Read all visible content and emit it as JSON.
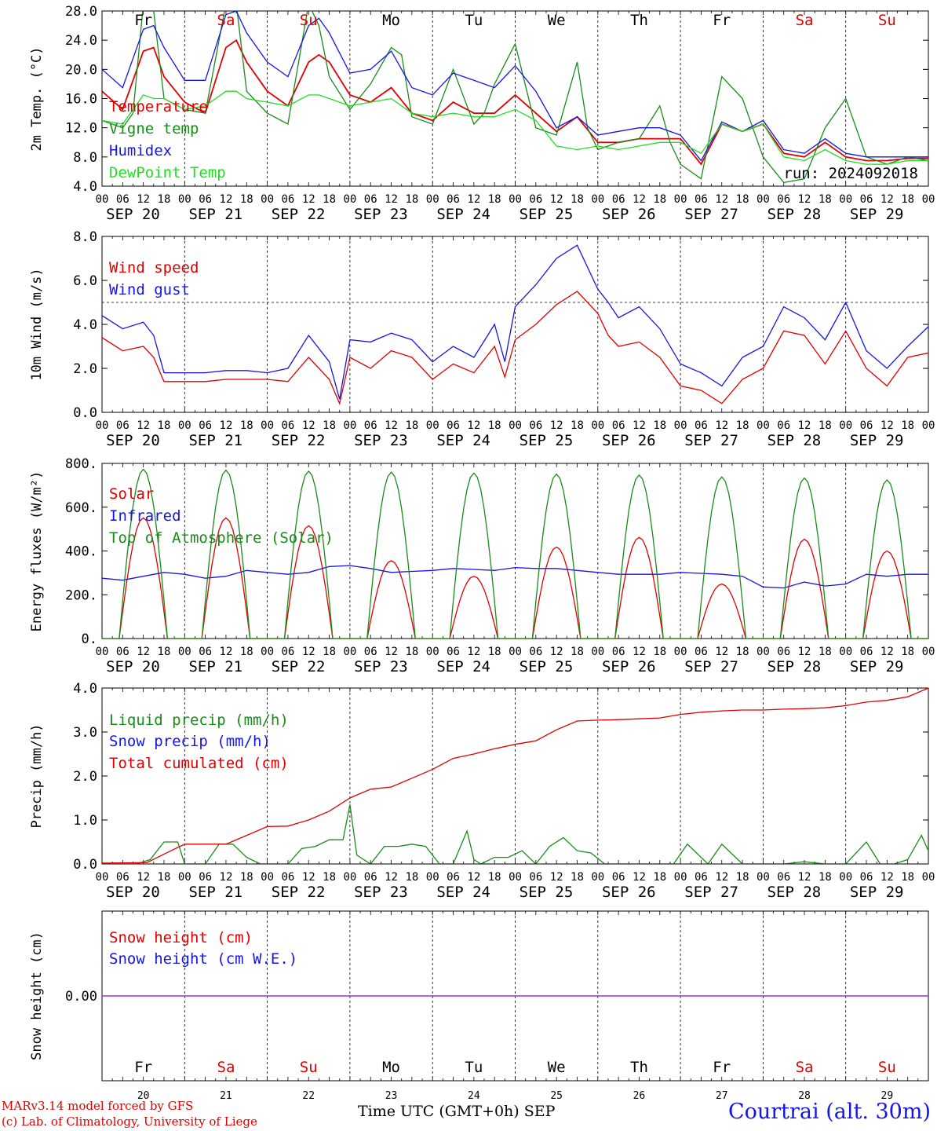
{
  "footer": {
    "credit_1": "MARv3.14 model forced by GFS",
    "credit_2": "(c) Lab. of Climatology, University of Liege",
    "time_axis": "Time UTC (GMT+0h) SEP",
    "station": "Courtrai (alt. 30m)"
  },
  "colors": {
    "red": "#e00000",
    "blue": "#1515e6",
    "green": "#1a8a1a",
    "lightgreen": "#22dd22",
    "purple": "#8a2be2"
  },
  "days": {
    "weekday": [
      "Fr",
      "Sa",
      "Su",
      "Mo",
      "Tu",
      "We",
      "Th",
      "Fr",
      "Sa",
      "Su"
    ],
    "weekend": [
      false,
      true,
      true,
      false,
      false,
      false,
      false,
      false,
      true,
      true
    ],
    "dates": [
      "SEP 20",
      "SEP 21",
      "SEP 22",
      "SEP 23",
      "SEP 24",
      "SEP 25",
      "SEP 26",
      "SEP 27",
      "SEP 28",
      "SEP 29"
    ],
    "numbers": [
      "20",
      "21",
      "22",
      "23",
      "24",
      "25",
      "26",
      "27",
      "28",
      "29"
    ],
    "hour_ticks": [
      "00",
      "06",
      "12",
      "18"
    ],
    "end_tick": "00"
  },
  "chart_data": [
    {
      "type": "line",
      "ylabel": "2m Temp. (°C)",
      "ylim": [
        4,
        28
      ],
      "yticks": [
        "4.0",
        "8.0",
        "12.0",
        "16.0",
        "20.0",
        "24.0",
        "28.0"
      ],
      "annotation": "run: 2024092018",
      "x_unit": "hours since SEP 20 00 UTC",
      "series": [
        {
          "name": "Temperature",
          "color": "red",
          "x": [
            0,
            6,
            12,
            15,
            18,
            24,
            30,
            36,
            39,
            42,
            48,
            54,
            60,
            63,
            66,
            72,
            78,
            84,
            90,
            96,
            102,
            108,
            114,
            120,
            126,
            132,
            138,
            144,
            150,
            156,
            162,
            168,
            174,
            180,
            186,
            192,
            198,
            204,
            210,
            216,
            222,
            228,
            234,
            240
          ],
          "y": [
            17,
            14.5,
            22.5,
            23,
            19,
            15.5,
            14,
            23,
            24,
            21,
            17,
            15,
            21,
            22,
            21,
            16.5,
            15.5,
            17.5,
            14,
            13,
            15.5,
            14,
            14,
            16.5,
            14,
            11.5,
            13.5,
            10,
            10,
            10.5,
            10.5,
            10.5,
            7,
            12.5,
            11.5,
            12.5,
            8.5,
            8,
            10,
            8,
            7.5,
            7.5,
            7.8,
            7.8
          ]
        },
        {
          "name": "Vigne temp",
          "color": "green",
          "x": [
            0,
            6,
            9,
            12,
            15,
            18,
            24,
            30,
            36,
            39,
            42,
            48,
            54,
            60,
            63,
            66,
            72,
            78,
            84,
            87,
            90,
            96,
            102,
            108,
            111,
            114,
            120,
            126,
            132,
            138,
            141,
            144,
            150,
            156,
            162,
            165,
            168,
            174,
            180,
            186,
            189,
            192,
            198,
            204,
            210,
            216,
            222,
            228,
            234,
            240
          ],
          "y": [
            13,
            12,
            14,
            29,
            28,
            16,
            14.5,
            14,
            29,
            29,
            17,
            14,
            12.5,
            29,
            26,
            19,
            14.5,
            18,
            23,
            22,
            13.5,
            12.5,
            20,
            12.5,
            14,
            18,
            23.5,
            12,
            11,
            21,
            12,
            9,
            10,
            10.5,
            15,
            10,
            7,
            5,
            19,
            16,
            12,
            8,
            4.5,
            5,
            12,
            16,
            8,
            7,
            8,
            7.5
          ]
        },
        {
          "name": "Humidex",
          "color": "blue",
          "x": [
            0,
            6,
            12,
            15,
            18,
            24,
            30,
            36,
            39,
            42,
            48,
            54,
            60,
            63,
            66,
            72,
            78,
            84,
            90,
            96,
            102,
            108,
            114,
            120,
            126,
            132,
            138,
            144,
            150,
            156,
            162,
            168,
            174,
            180,
            186,
            192,
            198,
            204,
            210,
            216,
            222,
            228,
            234,
            240
          ],
          "y": [
            20,
            17.5,
            25.5,
            26,
            23,
            18.5,
            18.5,
            27.5,
            28,
            25,
            21,
            19,
            26,
            27,
            25,
            19.5,
            20,
            22.5,
            17.5,
            16.5,
            19.5,
            18.5,
            17.5,
            20.5,
            17,
            12,
            13.5,
            11,
            11.5,
            12,
            12,
            11,
            7.5,
            12.8,
            11.5,
            13,
            9,
            8.5,
            10.5,
            8.5,
            8,
            8,
            8,
            8
          ]
        },
        {
          "name": "DewPoint Temp",
          "color": "lightgreen",
          "x": [
            0,
            6,
            12,
            15,
            18,
            24,
            30,
            36,
            39,
            42,
            48,
            54,
            60,
            63,
            66,
            72,
            78,
            84,
            90,
            96,
            102,
            108,
            114,
            120,
            126,
            132,
            138,
            144,
            150,
            156,
            162,
            168,
            174,
            180,
            186,
            192,
            198,
            204,
            210,
            216,
            222,
            228,
            234,
            240
          ],
          "y": [
            13,
            12.5,
            16.5,
            16,
            16,
            14.5,
            15,
            17,
            17,
            16,
            15.5,
            15,
            16.5,
            16.5,
            16,
            15,
            15.5,
            16,
            14,
            13.5,
            14,
            13.5,
            13.5,
            14.5,
            13,
            9.5,
            9,
            9.5,
            9,
            9.5,
            10,
            10,
            8.5,
            12.5,
            11.5,
            12.5,
            8,
            7.5,
            9,
            7.5,
            7,
            7,
            7.5,
            7.5
          ]
        }
      ]
    },
    {
      "type": "line",
      "ylabel": "10m Wind (m/s)",
      "ylim": [
        0,
        8
      ],
      "yticks": [
        "0.0",
        "2.0",
        "4.0",
        "6.0",
        "8.0"
      ],
      "reference_line": 5,
      "x_unit": "hours since SEP 20 00 UTC",
      "series": [
        {
          "name": "Wind speed",
          "color": "red",
          "x": [
            0,
            6,
            12,
            15,
            18,
            24,
            30,
            36,
            42,
            48,
            54,
            60,
            66,
            69,
            72,
            78,
            84,
            90,
            96,
            102,
            108,
            114,
            117,
            120,
            126,
            132,
            138,
            144,
            147,
            150,
            156,
            162,
            168,
            174,
            180,
            186,
            192,
            198,
            204,
            210,
            216,
            222,
            228,
            234,
            240
          ],
          "y": [
            3.4,
            2.8,
            3,
            2.5,
            1.4,
            1.4,
            1.4,
            1.5,
            1.5,
            1.5,
            1.4,
            2.5,
            1.5,
            0.4,
            2.5,
            2,
            2.8,
            2.5,
            1.5,
            2.2,
            1.8,
            3,
            1.6,
            3.3,
            4,
            4.9,
            5.5,
            4.5,
            3.5,
            3,
            3.2,
            2.5,
            1.2,
            1,
            0.4,
            1.5,
            2,
            3.7,
            3.5,
            2.2,
            3.7,
            2,
            1.2,
            2.5,
            2.7
          ]
        },
        {
          "name": "Wind gust",
          "color": "blue",
          "x": [
            0,
            6,
            12,
            15,
            18,
            24,
            30,
            36,
            42,
            48,
            54,
            60,
            66,
            69,
            72,
            78,
            84,
            90,
            96,
            102,
            108,
            114,
            117,
            120,
            126,
            132,
            138,
            144,
            147,
            150,
            156,
            162,
            168,
            174,
            180,
            186,
            192,
            198,
            204,
            210,
            216,
            222,
            228,
            234,
            240
          ],
          "y": [
            4.4,
            3.8,
            4.1,
            3.5,
            1.8,
            1.8,
            1.8,
            1.9,
            1.9,
            1.8,
            2,
            3.5,
            2.3,
            0.6,
            3.3,
            3.2,
            3.6,
            3.3,
            2.3,
            3,
            2.5,
            4,
            2.3,
            4.8,
            5.8,
            7,
            7.6,
            5.6,
            5,
            4.3,
            4.8,
            3.8,
            2.2,
            1.8,
            1.2,
            2.5,
            3,
            4.8,
            4.3,
            3.3,
            5,
            2.8,
            2,
            3,
            3.9
          ]
        }
      ]
    },
    {
      "type": "line",
      "ylabel": "Energy fluxes (W/m²)",
      "ylim": [
        0,
        900
      ],
      "yticks": [
        "0.",
        "200.",
        "400.",
        "600.",
        "800."
      ],
      "x_unit": "hours since SEP 20 00 UTC",
      "series": [
        {
          "name": "Solar",
          "color": "red",
          "peaks": [
            620,
            620,
            580,
            400,
            320,
            470,
            520,
            280,
            510,
            450
          ]
        },
        {
          "name": "Infrared",
          "color": "blue",
          "x": [
            0,
            6,
            12,
            18,
            24,
            30,
            36,
            42,
            48,
            54,
            60,
            66,
            72,
            78,
            84,
            90,
            96,
            102,
            108,
            114,
            120,
            126,
            132,
            138,
            144,
            150,
            156,
            162,
            168,
            174,
            180,
            186,
            192,
            198,
            204,
            210,
            216,
            222,
            228,
            234,
            240
          ],
          "y": [
            310,
            300,
            320,
            340,
            330,
            310,
            320,
            350,
            340,
            330,
            340,
            370,
            375,
            360,
            340,
            345,
            350,
            360,
            355,
            350,
            365,
            360,
            360,
            350,
            340,
            330,
            330,
            330,
            340,
            335,
            330,
            320,
            265,
            260,
            290,
            270,
            280,
            330,
            320,
            330,
            330
          ]
        },
        {
          "name": "Top of Atmosphere (Solar)",
          "color": "green",
          "peaks": [
            870,
            865,
            860,
            855,
            850,
            845,
            840,
            830,
            825,
            815
          ]
        }
      ]
    },
    {
      "type": "line",
      "ylabel": "Precip (mm/h)",
      "ylim": [
        0,
        4
      ],
      "yticks": [
        "0.0",
        "1.0",
        "2.0",
        "3.0",
        "4.0"
      ],
      "x_unit": "hours since SEP 20 00 UTC",
      "series": [
        {
          "name": "Liquid precip (mm/h)",
          "color": "green",
          "x": [
            0,
            6,
            10,
            14,
            18,
            22,
            24,
            30,
            34,
            38,
            42,
            46,
            48,
            54,
            58,
            62,
            66,
            70,
            72,
            74,
            78,
            82,
            86,
            90,
            94,
            98,
            102,
            106,
            108,
            110,
            114,
            118,
            122,
            126,
            130,
            134,
            138,
            142,
            146,
            150,
            154,
            160,
            166,
            170,
            176,
            180,
            186,
            192,
            198,
            204,
            210,
            216,
            222,
            226,
            230,
            234,
            238,
            240
          ],
          "y": [
            0,
            0,
            0,
            0.1,
            0.5,
            0.5,
            0,
            0,
            0.45,
            0.45,
            0.15,
            0,
            0,
            0,
            0.35,
            0.4,
            0.55,
            0.55,
            1.35,
            0.2,
            0,
            0.4,
            0.4,
            0.45,
            0.4,
            0,
            0,
            0.75,
            0.1,
            0,
            0.15,
            0.15,
            0.3,
            0,
            0.4,
            0.6,
            0.3,
            0.25,
            0,
            0,
            0,
            0,
            0,
            0.45,
            0,
            0.45,
            0,
            0,
            0,
            0.05,
            0,
            0,
            0.5,
            0,
            0,
            0.1,
            0.65,
            0.3
          ]
        },
        {
          "name": "Snow precip (mm/h)",
          "color": "blue",
          "x": [
            0,
            240
          ],
          "y": [
            0,
            0
          ]
        },
        {
          "name": "Total cumulated (cm)",
          "color": "red",
          "x": [
            0,
            13,
            20,
            24,
            36,
            42,
            48,
            54,
            60,
            66,
            72,
            78,
            84,
            90,
            96,
            102,
            108,
            114,
            120,
            126,
            132,
            138,
            144,
            150,
            156,
            162,
            168,
            174,
            180,
            186,
            192,
            198,
            204,
            210,
            216,
            222,
            228,
            234,
            240
          ],
          "y": [
            0.02,
            0.03,
            0.3,
            0.45,
            0.45,
            0.65,
            0.85,
            0.86,
            1,
            1.2,
            1.5,
            1.7,
            1.75,
            1.95,
            2.15,
            2.4,
            2.5,
            2.62,
            2.72,
            2.8,
            3.05,
            3.25,
            3.27,
            3.28,
            3.3,
            3.32,
            3.4,
            3.45,
            3.48,
            3.5,
            3.5,
            3.52,
            3.53,
            3.55,
            3.6,
            3.68,
            3.72,
            3.8,
            4
          ]
        }
      ]
    },
    {
      "type": "line",
      "ylabel": "Snow height (cm)",
      "ylim": [
        -1,
        1
      ],
      "yticks": [
        "0.00"
      ],
      "x_unit": "hours since SEP 20 00 UTC",
      "series": [
        {
          "name": "Snow height (cm)",
          "color": "red",
          "x": [
            0,
            240
          ],
          "y": [
            0,
            0
          ]
        },
        {
          "name": "Snow height (cm W.E.)",
          "color": "blue",
          "x": [
            0,
            240
          ],
          "y": [
            0,
            0
          ]
        }
      ]
    }
  ]
}
